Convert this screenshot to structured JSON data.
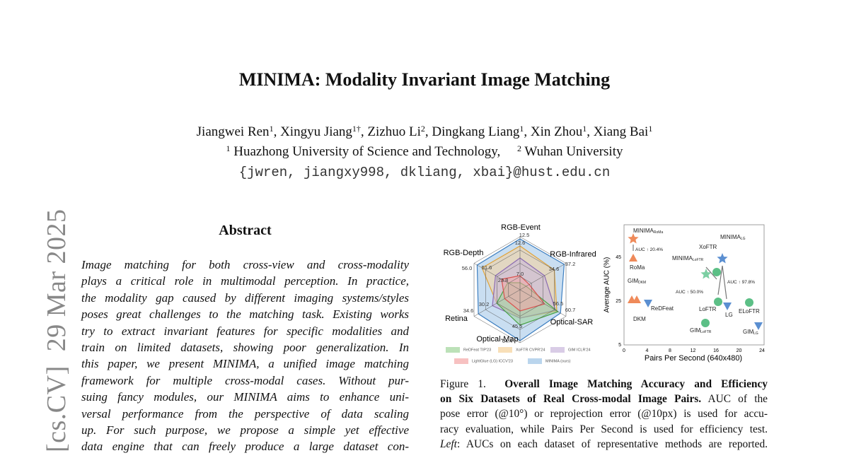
{
  "sidebar": "[cs.CV]  29 Mar 2025",
  "title": "MINIMA: Modality Invariant Image Matching",
  "authors": [
    {
      "name": "Jiangwei Ren",
      "sup": "1",
      "sep": ","
    },
    {
      "name": "Xingyu Jiang",
      "sup": "1†",
      "sep": ","
    },
    {
      "name": "Zizhuo Li",
      "sup": "2",
      "sep": ","
    },
    {
      "name": "Dingkang Liang",
      "sup": "1",
      "sep": ","
    },
    {
      "name": "Xin Zhou",
      "sup": "1",
      "sep": ","
    },
    {
      "name": "Xiang Bai",
      "sup": "1"
    }
  ],
  "affiliations": [
    {
      "sup": "1",
      "name": "Huazhong University of Science and Technology,"
    },
    {
      "sup": "2",
      "name": "Wuhan University"
    }
  ],
  "email": "{jwren, jiangxy998, dkliang, xbai}@hust.edu.cn",
  "abstract": {
    "heading": "Abstract",
    "lines": [
      "Image matching for both cross-view and cross-modality",
      "plays a critical role in multimodal perception.  In practice,",
      "the modality gap caused by different imaging systems/styles",
      "poses great challenges to the matching task. Existing works",
      "try to extract invariant features for specific modalities and",
      "train on limited datasets, showing poor generalization.  In",
      "this paper, we present MINIMA, a unified image matching",
      "framework for multiple cross-modal cases.  Without pur-",
      "suing fancy modules, our MINIMA aims to enhance uni-",
      "versal performance from the perspective of data scaling",
      "up.  For such purpose, we propose a simple yet effective",
      "data engine that can freely produce a large dataset con-"
    ]
  },
  "figure": {
    "radar": {
      "axes": [
        "RGB-Event",
        "RGB-Infrared",
        "Optical-SAR",
        "Optical-Map",
        "Retina",
        "RGB-Depth"
      ],
      "values": [
        "12.5",
        "12.6",
        "37.2",
        "34.6",
        "60.7",
        "56.5",
        "64.4",
        "45.5",
        "34.6",
        "30.2",
        "56.0",
        "51.6",
        "7.0",
        "23.8"
      ]
    },
    "legend": [
      {
        "text": "ReDFeat TIP'23",
        "color": "#9fd49a"
      },
      {
        "text": "XoFTR CVPR'24",
        "color": "#f5d29a"
      },
      {
        "text": "GIM ICLR'24",
        "color": "#c9b6dc"
      },
      {
        "text": "LightGlue (LG) ICCV'23",
        "color": "#f3a6a6"
      },
      {
        "text": "MINIMA (ours)",
        "color": "#9cc3e6"
      }
    ],
    "scatter": {
      "ylabel": "Average AUC (%)",
      "xlabel": "Pairs Per Second (640x480)",
      "xticks": [
        0,
        4,
        8,
        12,
        16,
        20,
        24
      ],
      "yticks": [
        5,
        25,
        45
      ],
      "labels": [
        {
          "text": "MINIMA",
          "sub": "RoMa"
        },
        {
          "text": "AUC ↑ 20.4%"
        },
        {
          "text": "RoMa"
        },
        {
          "text": "GIM",
          "sub": "DKM"
        },
        {
          "text": "ReDFeat"
        },
        {
          "text": "DKM"
        },
        {
          "text": "MINIMA",
          "sub": "LoFTR"
        },
        {
          "text": "XoFTR"
        },
        {
          "text": "MINIMA",
          "sub": "LG"
        },
        {
          "text": "AUC ↑ 50.0%"
        },
        {
          "text": "AUC ↑ 97.8%"
        },
        {
          "text": "LoFTR"
        },
        {
          "text": "LG"
        },
        {
          "text": "ELoFTR"
        },
        {
          "text": "GIM",
          "sub": "LoFTR"
        },
        {
          "text": "GIM",
          "sub": "LG"
        }
      ]
    }
  },
  "caption": {
    "lines": [
      [
        {
          "text": "Figure 1.  "
        },
        {
          "text": "Overall Image Matching Accuracy and Efficiency",
          "style": "b"
        }
      ],
      [
        {
          "text": "on Six Datasets of Real Cross-modal Image Pairs.",
          "style": "b"
        },
        {
          "text": " AUC of the"
        }
      ],
      [
        {
          "text": "pose error (@10°) or reprojection error (@10px) is used for accu-"
        }
      ],
      [
        {
          "text": "racy evaluation, while Pairs Per Second is used for efficiency test."
        }
      ],
      [
        {
          "text": "Left",
          "style": "i"
        },
        {
          "text": ": AUCs on each dataset of representative methods are reported."
        }
      ]
    ]
  }
}
